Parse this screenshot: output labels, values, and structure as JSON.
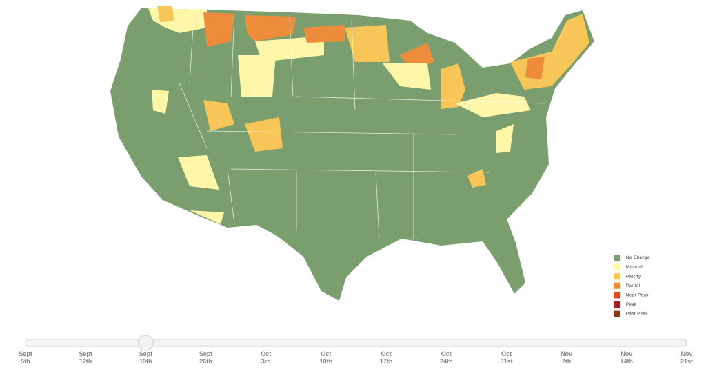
{
  "legend": {
    "items": [
      {
        "label": "No Change",
        "color": "#7a9e6e"
      },
      {
        "label": "Minimal",
        "color": "#fdf6a8"
      },
      {
        "label": "Patchy",
        "color": "#f8c559"
      },
      {
        "label": "Partial",
        "color": "#ef8c3b"
      },
      {
        "label": "Near Peak",
        "color": "#e0472a"
      },
      {
        "label": "Peak",
        "color": "#a61f22"
      },
      {
        "label": "Past Peak",
        "color": "#8a3a1f"
      }
    ]
  },
  "slider": {
    "selected": 2,
    "ticks": [
      [
        "Sept",
        "5th"
      ],
      [
        "Sept",
        "12th"
      ],
      [
        "Sept",
        "19th"
      ],
      [
        "Sept",
        "26th"
      ],
      [
        "Oct",
        "3rd"
      ],
      [
        "Oct",
        "10th"
      ],
      [
        "Oct",
        "17th"
      ],
      [
        "Oct",
        "24th"
      ],
      [
        "Oct",
        "31st"
      ],
      [
        "Nov",
        "7th"
      ],
      [
        "Nov",
        "14th"
      ],
      [
        "Nov",
        "21st"
      ]
    ]
  }
}
